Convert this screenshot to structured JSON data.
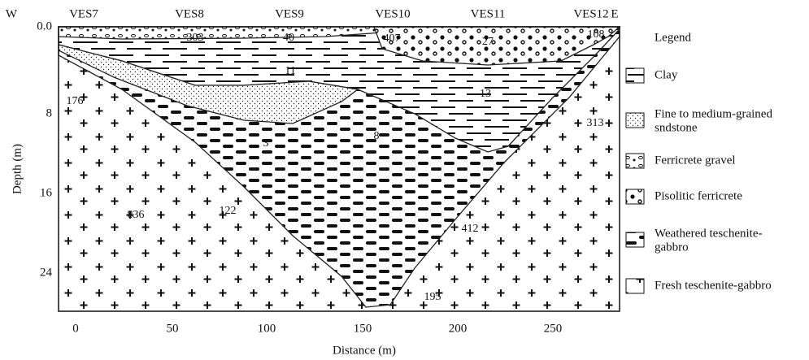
{
  "header": {
    "west": "W",
    "east": "E"
  },
  "stations": [
    "VES7",
    "VES8",
    "VES9",
    "VES10",
    "VES11",
    "VES12"
  ],
  "axes": {
    "y_label": "Depth (m)",
    "y_ticks": [
      "0.0",
      8,
      16,
      24
    ],
    "x_label": "Distance (m)",
    "x_ticks": [
      0,
      50,
      100,
      150,
      200,
      250
    ]
  },
  "resistivity_labels": [
    303,
    40,
    407,
    27,
    108,
    11,
    13,
    176,
    3,
    8,
    313,
    836,
    122,
    412,
    195
  ],
  "legend": {
    "title": "Legend",
    "items": [
      [
        "Clay"
      ],
      [
        "Fine to medium-grained",
        "sndstone"
      ],
      [
        "Ferricrete gravel"
      ],
      [
        "Pisolitic ferricrete"
      ],
      [
        "Weathered teschenite-",
        "gabbro"
      ],
      [
        "Fresh teschenite-gabbro"
      ]
    ]
  }
}
